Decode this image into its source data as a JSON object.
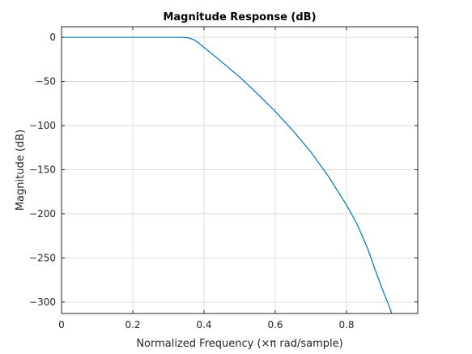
{
  "chart_data": {
    "type": "line",
    "title": "Magnitude Response (dB)",
    "xlabel": "Normalized Frequency (×π rad/sample)",
    "ylabel": "Magnitude (dB)",
    "xlim": [
      0,
      1
    ],
    "ylim": [
      -313,
      12
    ],
    "xticks": [
      0,
      0.2,
      0.4,
      0.6,
      0.8
    ],
    "yticks": [
      0,
      -50,
      -100,
      -150,
      -200,
      -250,
      -300
    ],
    "grid": true,
    "series": [
      {
        "name": "",
        "color": "#0072BD",
        "x": [
          0,
          0.05,
          0.1,
          0.15,
          0.2,
          0.25,
          0.3,
          0.33,
          0.35,
          0.36,
          0.37,
          0.38,
          0.39,
          0.4,
          0.42,
          0.45,
          0.5,
          0.55,
          0.6,
          0.65,
          0.7,
          0.75,
          0.8,
          0.83,
          0.86,
          0.88,
          0.9,
          0.92,
          0.927
        ],
        "y": [
          0,
          0,
          0,
          0,
          0,
          0,
          0,
          0,
          -0.3,
          -1,
          -2.5,
          -5,
          -8,
          -11.5,
          -18,
          -28,
          -45,
          -64,
          -84,
          -106,
          -130,
          -158,
          -190,
          -212,
          -240,
          -263,
          -285,
          -305,
          -313
        ]
      }
    ]
  }
}
